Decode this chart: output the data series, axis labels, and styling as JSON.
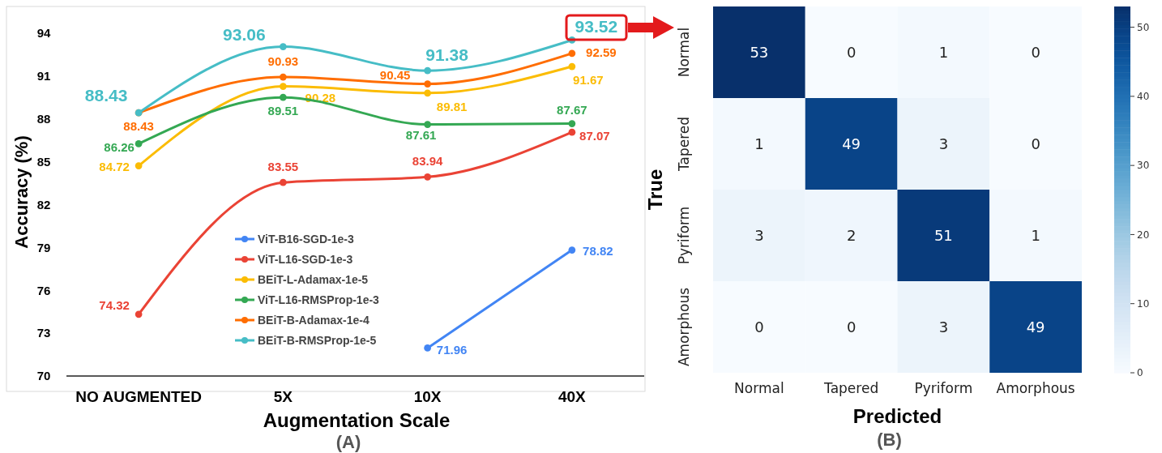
{
  "chart_data": [
    {
      "type": "line",
      "xlabel": "Augmentation Scale",
      "ylabel": "Accuracy (%)",
      "categories": [
        "NO AUGMENTED",
        "5X",
        "10X",
        "40X"
      ],
      "ylim": [
        70,
        94
      ],
      "yticks": [
        70,
        73,
        76,
        79,
        82,
        85,
        88,
        91,
        94
      ],
      "marker": "circle",
      "line_style": "solid",
      "legend": "bottom",
      "grid": false,
      "data_labels": true,
      "annotations": [
        "(A)"
      ],
      "series": [
        {
          "name": "ViT-B16-SGD-1e-3",
          "color": "#4285f4",
          "values": [
            null,
            null,
            71.96,
            78.82
          ]
        },
        {
          "name": "ViT-L16-SGD-1e-3",
          "color": "#ea4335",
          "values": [
            74.32,
            83.55,
            83.94,
            87.07
          ]
        },
        {
          "name": "BEiT-L-Adamax-1e-5",
          "color": "#fbbc04",
          "values": [
            84.72,
            90.28,
            89.81,
            91.67
          ]
        },
        {
          "name": "ViT-L16-RMSProp-1e-3",
          "color": "#34a853",
          "values": [
            86.26,
            89.51,
            87.61,
            87.67
          ]
        },
        {
          "name": "BEiT-B-Adamax-1e-4",
          "color": "#ff6d01",
          "values": [
            88.43,
            90.93,
            90.45,
            92.59
          ]
        },
        {
          "name": "BEiT-B-RMSProp-1e-5",
          "color": "#46bdc6",
          "values": [
            88.43,
            93.06,
            91.38,
            93.52
          ]
        }
      ]
    },
    {
      "type": "heatmap",
      "xlabel": "Predicted",
      "ylabel": "True",
      "categories": [
        "Normal",
        "Tapered",
        "Pyriform",
        "Amorphous"
      ],
      "y_categories": [
        "Normal",
        "Tapered",
        "Pyriform",
        "Amorphous"
      ],
      "cells": [
        [
          53,
          0,
          1,
          0
        ],
        [
          1,
          49,
          3,
          0
        ],
        [
          3,
          2,
          51,
          1
        ],
        [
          0,
          0,
          3,
          49
        ]
      ],
      "data_labels": true,
      "clim": [
        0,
        53
      ],
      "cticks": [
        0,
        10,
        20,
        30,
        40,
        50
      ],
      "annotations": [
        "(B)"
      ]
    }
  ]
}
